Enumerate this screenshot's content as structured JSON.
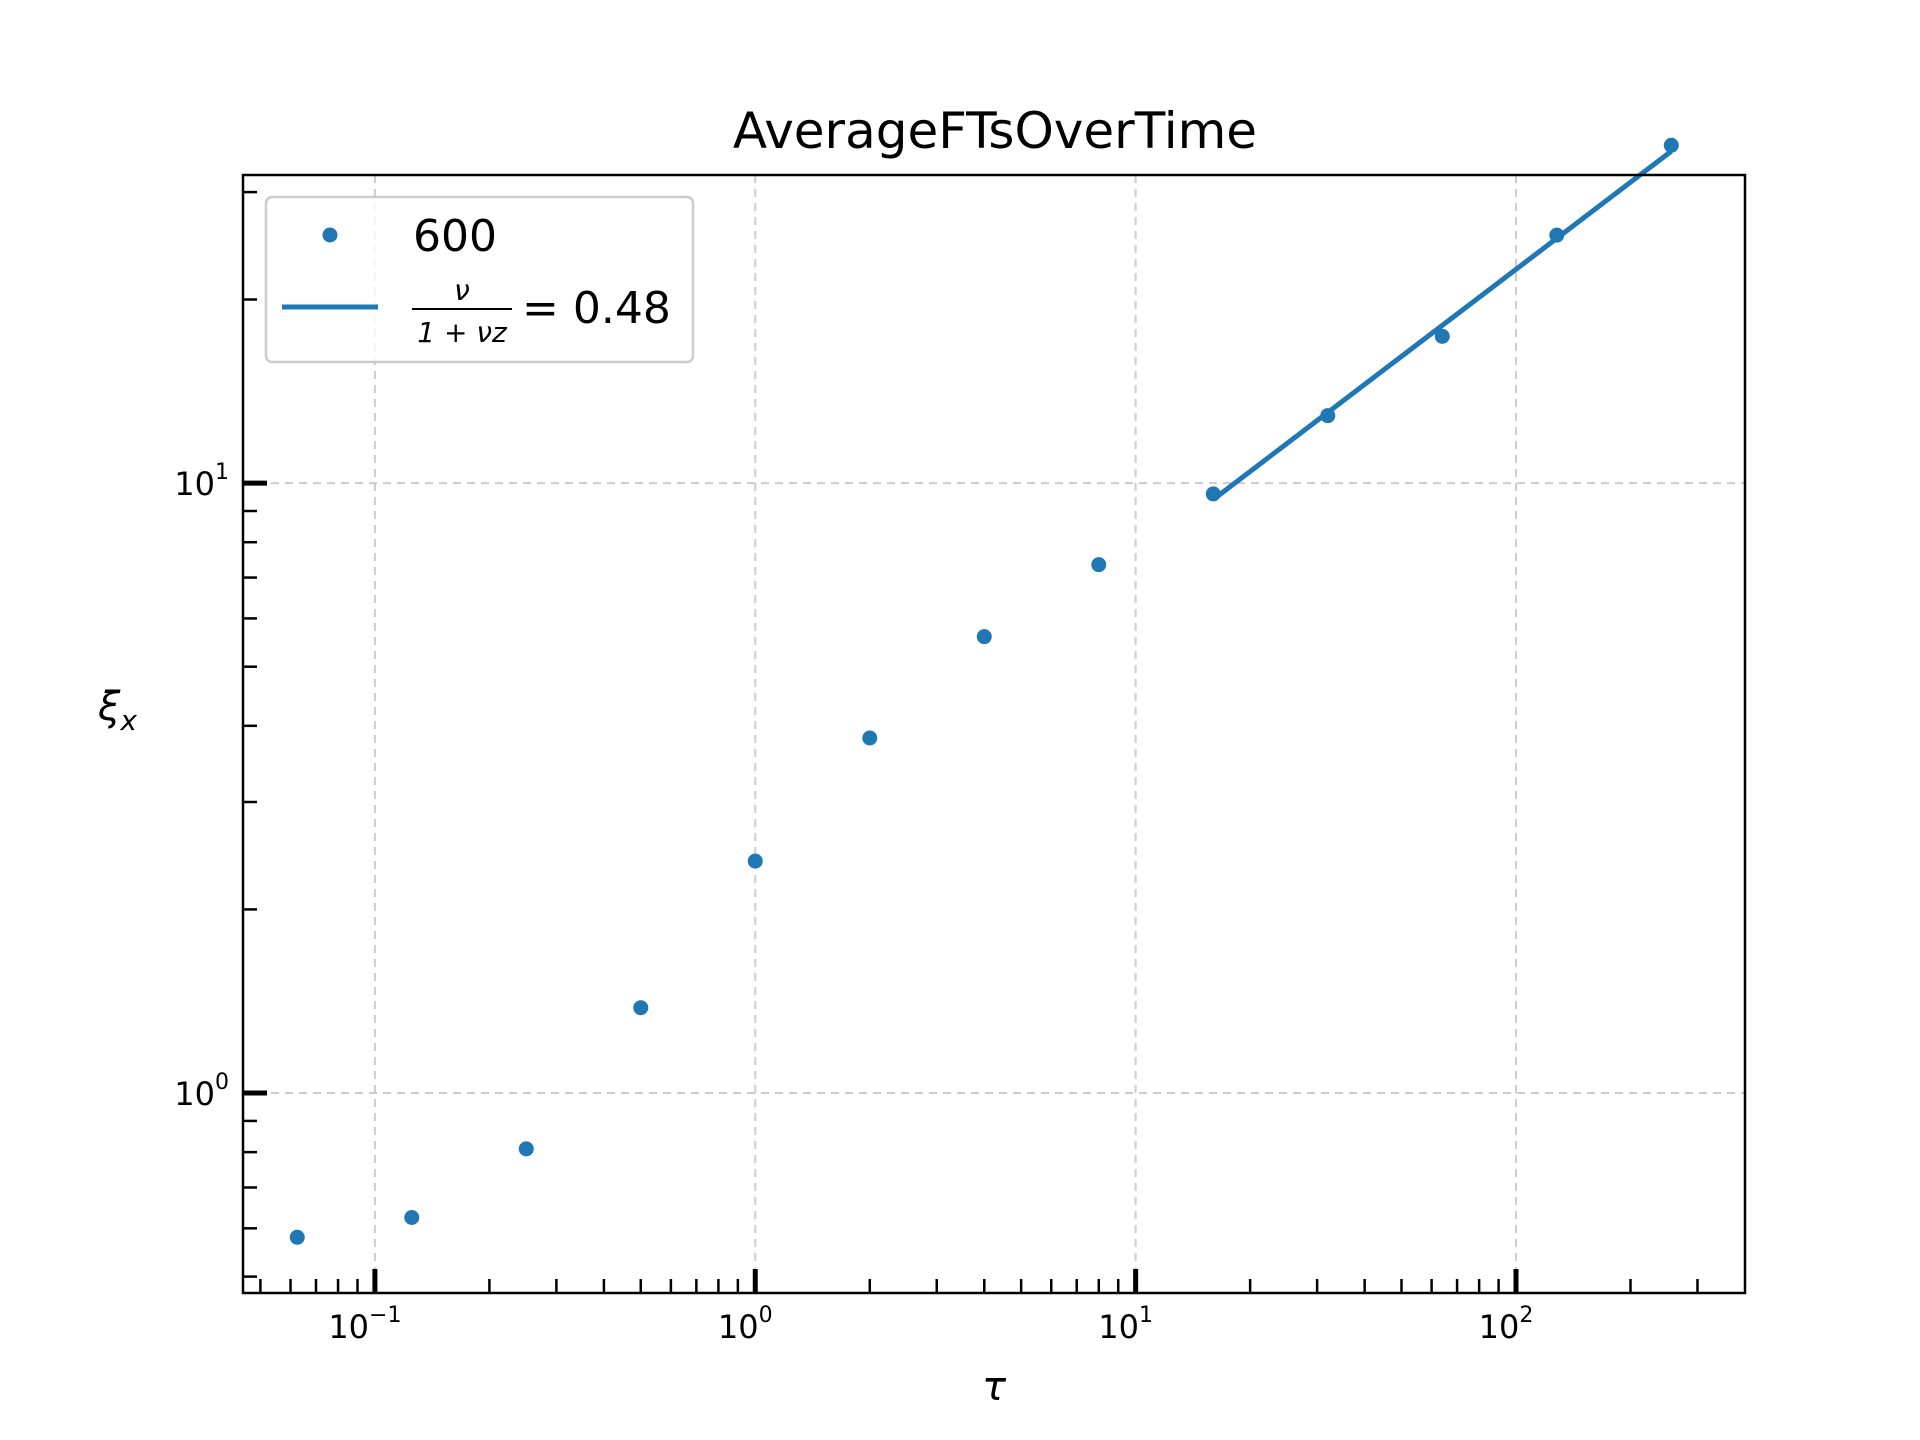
{
  "chart_data": {
    "type": "scatter",
    "title": "AverageFTsOverTime",
    "xlabel": "τ",
    "ylabel": "ξx",
    "xscale": "log",
    "yscale": "log",
    "xlim": [
      0.045,
      400
    ],
    "ylim": [
      0.47,
      32
    ],
    "grid": true,
    "legend_position": "top-left",
    "x_tick_labels": [
      {
        "base": "10",
        "exp": "−1",
        "value": 0.1
      },
      {
        "base": "10",
        "exp": "0",
        "value": 1
      },
      {
        "base": "10",
        "exp": "1",
        "value": 10
      },
      {
        "base": "10",
        "exp": "2",
        "value": 100
      }
    ],
    "y_tick_labels": [
      {
        "base": "10",
        "exp": "0",
        "value": 1
      },
      {
        "base": "10",
        "exp": "1",
        "value": 10
      }
    ],
    "series": [
      {
        "name": "600",
        "kind": "points",
        "color": "#1f77b4",
        "x": [
          0.0625,
          0.125,
          0.25,
          0.5,
          1,
          2,
          4,
          8,
          16,
          32,
          64,
          128,
          256
        ],
        "y": [
          0.58,
          0.625,
          0.81,
          1.38,
          2.4,
          3.82,
          5.6,
          7.35,
          9.6,
          12.9,
          17.4,
          25.5,
          35.8
        ]
      },
      {
        "name": "ν/(1+νz) = 0.48",
        "kind": "line",
        "color": "#1f77b4",
        "x": [
          16,
          256
        ],
        "y": [
          9.4,
          35.0
        ]
      }
    ],
    "legend": {
      "points_label": "600",
      "fit_numerator": "ν",
      "fit_denominator": "1 + νz",
      "fit_value": "= 0.48"
    }
  }
}
